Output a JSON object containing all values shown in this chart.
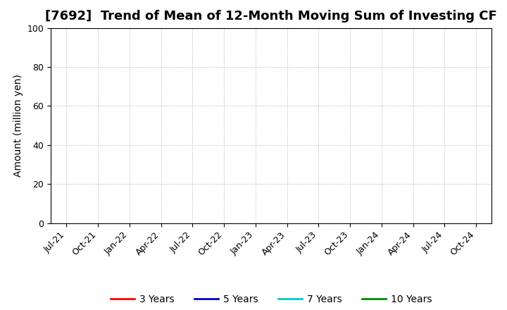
{
  "title": "[7692]  Trend of Mean of 12-Month Moving Sum of Investing CF",
  "ylabel": "Amount (million yen)",
  "ylim": [
    0,
    100
  ],
  "yticks": [
    0,
    20,
    40,
    60,
    80,
    100
  ],
  "x_labels": [
    "Jul-21",
    "Oct-21",
    "Jan-22",
    "Apr-22",
    "Jul-22",
    "Oct-22",
    "Jan-23",
    "Apr-23",
    "Jul-23",
    "Oct-23",
    "Jan-24",
    "Apr-24",
    "Jul-24",
    "Oct-24"
  ],
  "background_color": "#ffffff",
  "plot_bg_color": "#ffffff",
  "grid_color": "#b0b0b0",
  "legend_entries": [
    {
      "label": "3 Years",
      "color": "#ff0000"
    },
    {
      "label": "5 Years",
      "color": "#0000cc"
    },
    {
      "label": "7 Years",
      "color": "#00cccc"
    },
    {
      "label": "10 Years",
      "color": "#008800"
    }
  ],
  "title_fontsize": 13,
  "label_fontsize": 10,
  "tick_fontsize": 9,
  "legend_fontsize": 10
}
